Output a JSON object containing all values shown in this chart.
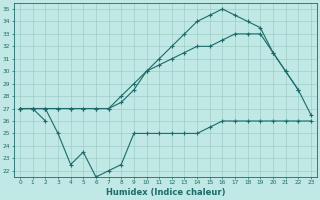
{
  "title": "",
  "xlabel": "Humidex (Indice chaleur)",
  "ylabel": "",
  "bg_color": "#c0e8e4",
  "line_color": "#1a6b6b",
  "grid_color": "#a0ccc8",
  "x_values": [
    0,
    1,
    2,
    3,
    4,
    5,
    6,
    7,
    8,
    9,
    10,
    11,
    12,
    13,
    14,
    15,
    16,
    17,
    18,
    19,
    20,
    21,
    22,
    23
  ],
  "line_upper": [
    27,
    27,
    27,
    27,
    27,
    27,
    27,
    27,
    27.5,
    28.5,
    30,
    31,
    32,
    33,
    34,
    34.5,
    35,
    34.5,
    34,
    33.5,
    31.5,
    30,
    28.5,
    null
  ],
  "line_mid": [
    27,
    27,
    27,
    27,
    27,
    27,
    27,
    27,
    28,
    29,
    30,
    30.5,
    31,
    31.5,
    32,
    32,
    32.5,
    33,
    33,
    33,
    31.5,
    30,
    28.5,
    26.5
  ],
  "line_flat": [
    27,
    27,
    26,
    null,
    null,
    null,
    null,
    null,
    null,
    null,
    null,
    null,
    null,
    null,
    null,
    null,
    null,
    null,
    null,
    null,
    null,
    null,
    null,
    null
  ],
  "line_lower": [
    27,
    27,
    27,
    25,
    22.5,
    23.5,
    21.5,
    22,
    22.5,
    25,
    25,
    25,
    25,
    25,
    25,
    25.5,
    26,
    26,
    26,
    26,
    26,
    26,
    26,
    26
  ],
  "ylim": [
    21.5,
    35.5
  ],
  "xlim": [
    -0.5,
    23.5
  ],
  "yticks": [
    22,
    23,
    24,
    25,
    26,
    27,
    28,
    29,
    30,
    31,
    32,
    33,
    34,
    35
  ],
  "xticks": [
    0,
    1,
    2,
    3,
    4,
    5,
    6,
    7,
    8,
    9,
    10,
    11,
    12,
    13,
    14,
    15,
    16,
    17,
    18,
    19,
    20,
    21,
    22,
    23
  ]
}
